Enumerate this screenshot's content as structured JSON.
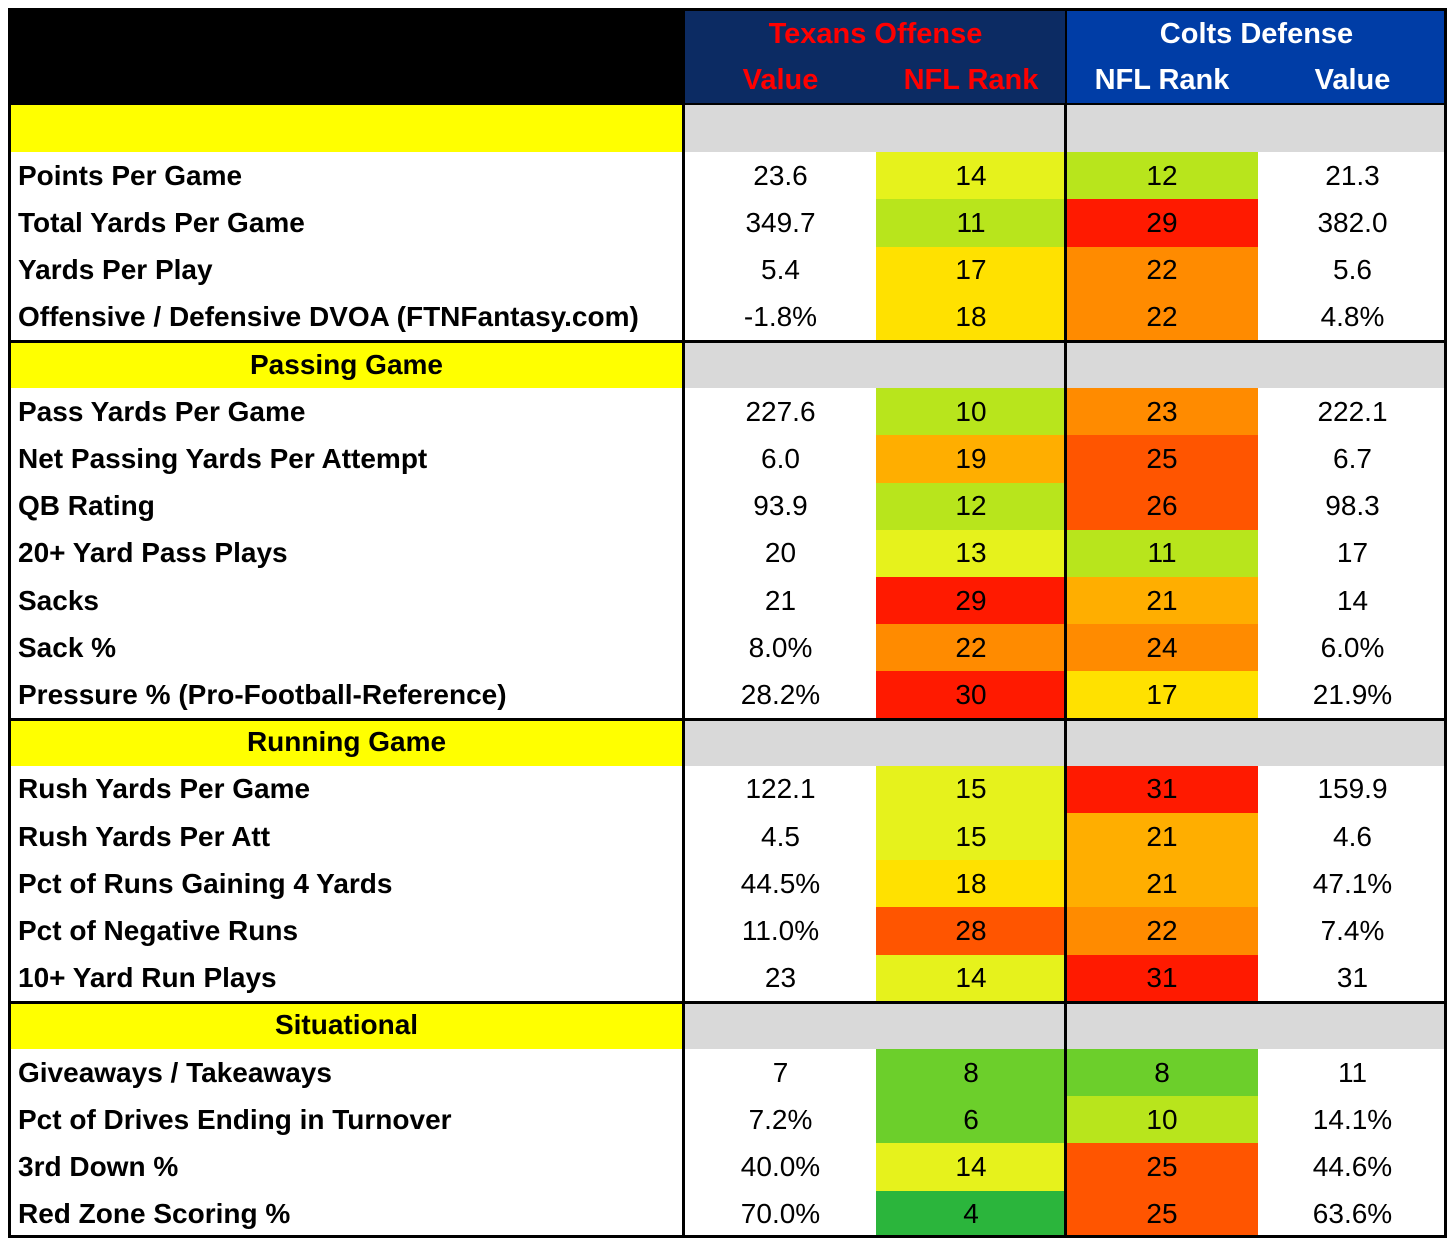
{
  "header": {
    "texans_title": "Texans Offense",
    "colts_title": "Colts Defense",
    "col_value_off": "Value",
    "col_rank_off": "NFL Rank",
    "col_rank_def": "NFL Rank",
    "col_value_def": "Value"
  },
  "colors": {
    "header_left": "#000000",
    "header_texans_bg": "#0c2b63",
    "header_colts_bg": "#003da6",
    "texans_text": "#ff0000",
    "colts_text": "#ffffff",
    "section_label_bg": "#ffff00",
    "section_band_bg": "#d9d9d9",
    "rank_scale": [
      "#2bb53c",
      "#6ccf2b",
      "#b8e51c",
      "#e6f21c",
      "#ffe100",
      "#ffae00",
      "#ff8b00",
      "#ff5500",
      "#ff1a00"
    ]
  },
  "sections": [
    {
      "title": "",
      "rows": [
        {
          "stat": "Points Per Game",
          "off_value": "23.6",
          "off_rank": "14",
          "def_rank": "12",
          "def_value": "21.3"
        },
        {
          "stat": "Total Yards Per Game",
          "off_value": "349.7",
          "off_rank": "11",
          "def_rank": "29",
          "def_value": "382.0"
        },
        {
          "stat": "Yards Per Play",
          "off_value": "5.4",
          "off_rank": "17",
          "def_rank": "22",
          "def_value": "5.6"
        },
        {
          "stat": "Offensive / Defensive DVOA (FTNFantasy.com)",
          "off_value": "-1.8%",
          "off_rank": "18",
          "def_rank": "22",
          "def_value": "4.8%"
        }
      ]
    },
    {
      "title": "Passing Game",
      "rows": [
        {
          "stat": "Pass Yards Per Game",
          "off_value": "227.6",
          "off_rank": "10",
          "def_rank": "23",
          "def_value": "222.1"
        },
        {
          "stat": "Net Passing Yards Per Attempt",
          "off_value": "6.0",
          "off_rank": "19",
          "def_rank": "25",
          "def_value": "6.7"
        },
        {
          "stat": "QB Rating",
          "off_value": "93.9",
          "off_rank": "12",
          "def_rank": "26",
          "def_value": "98.3"
        },
        {
          "stat": "20+ Yard Pass Plays",
          "off_value": "20",
          "off_rank": "13",
          "def_rank": "11",
          "def_value": "17"
        },
        {
          "stat": "Sacks",
          "off_value": "21",
          "off_rank": "29",
          "def_rank": "21",
          "def_value": "14"
        },
        {
          "stat": "Sack %",
          "off_value": "8.0%",
          "off_rank": "22",
          "def_rank": "24",
          "def_value": "6.0%"
        },
        {
          "stat": "Pressure % (Pro-Football-Reference)",
          "off_value": "28.2%",
          "off_rank": "30",
          "def_rank": "17",
          "def_value": "21.9%"
        }
      ]
    },
    {
      "title": "Running Game",
      "rows": [
        {
          "stat": "Rush Yards Per Game",
          "off_value": "122.1",
          "off_rank": "15",
          "def_rank": "31",
          "def_value": "159.9"
        },
        {
          "stat": "Rush Yards Per Att",
          "off_value": "4.5",
          "off_rank": "15",
          "def_rank": "21",
          "def_value": "4.6"
        },
        {
          "stat": "Pct of Runs Gaining 4 Yards",
          "off_value": "44.5%",
          "off_rank": "18",
          "def_rank": "21",
          "def_value": "47.1%"
        },
        {
          "stat": "Pct of Negative Runs",
          "off_value": "11.0%",
          "off_rank": "28",
          "def_rank": "22",
          "def_value": "7.4%"
        },
        {
          "stat": "10+ Yard Run Plays",
          "off_value": "23",
          "off_rank": "14",
          "def_rank": "31",
          "def_value": "31"
        }
      ]
    },
    {
      "title": "Situational",
      "rows": [
        {
          "stat": "Giveaways / Takeaways",
          "off_value": "7",
          "off_rank": "8",
          "def_rank": "8",
          "def_value": "11"
        },
        {
          "stat": "Pct of Drives Ending in Turnover",
          "off_value": "7.2%",
          "off_rank": "6",
          "def_rank": "10",
          "def_value": "14.1%"
        },
        {
          "stat": "3rd Down %",
          "off_value": "40.0%",
          "off_rank": "14",
          "def_rank": "25",
          "def_value": "44.6%"
        },
        {
          "stat": "Red Zone Scoring %",
          "off_value": "70.0%",
          "off_rank": "4",
          "def_rank": "25",
          "def_value": "63.6%"
        }
      ]
    }
  ]
}
